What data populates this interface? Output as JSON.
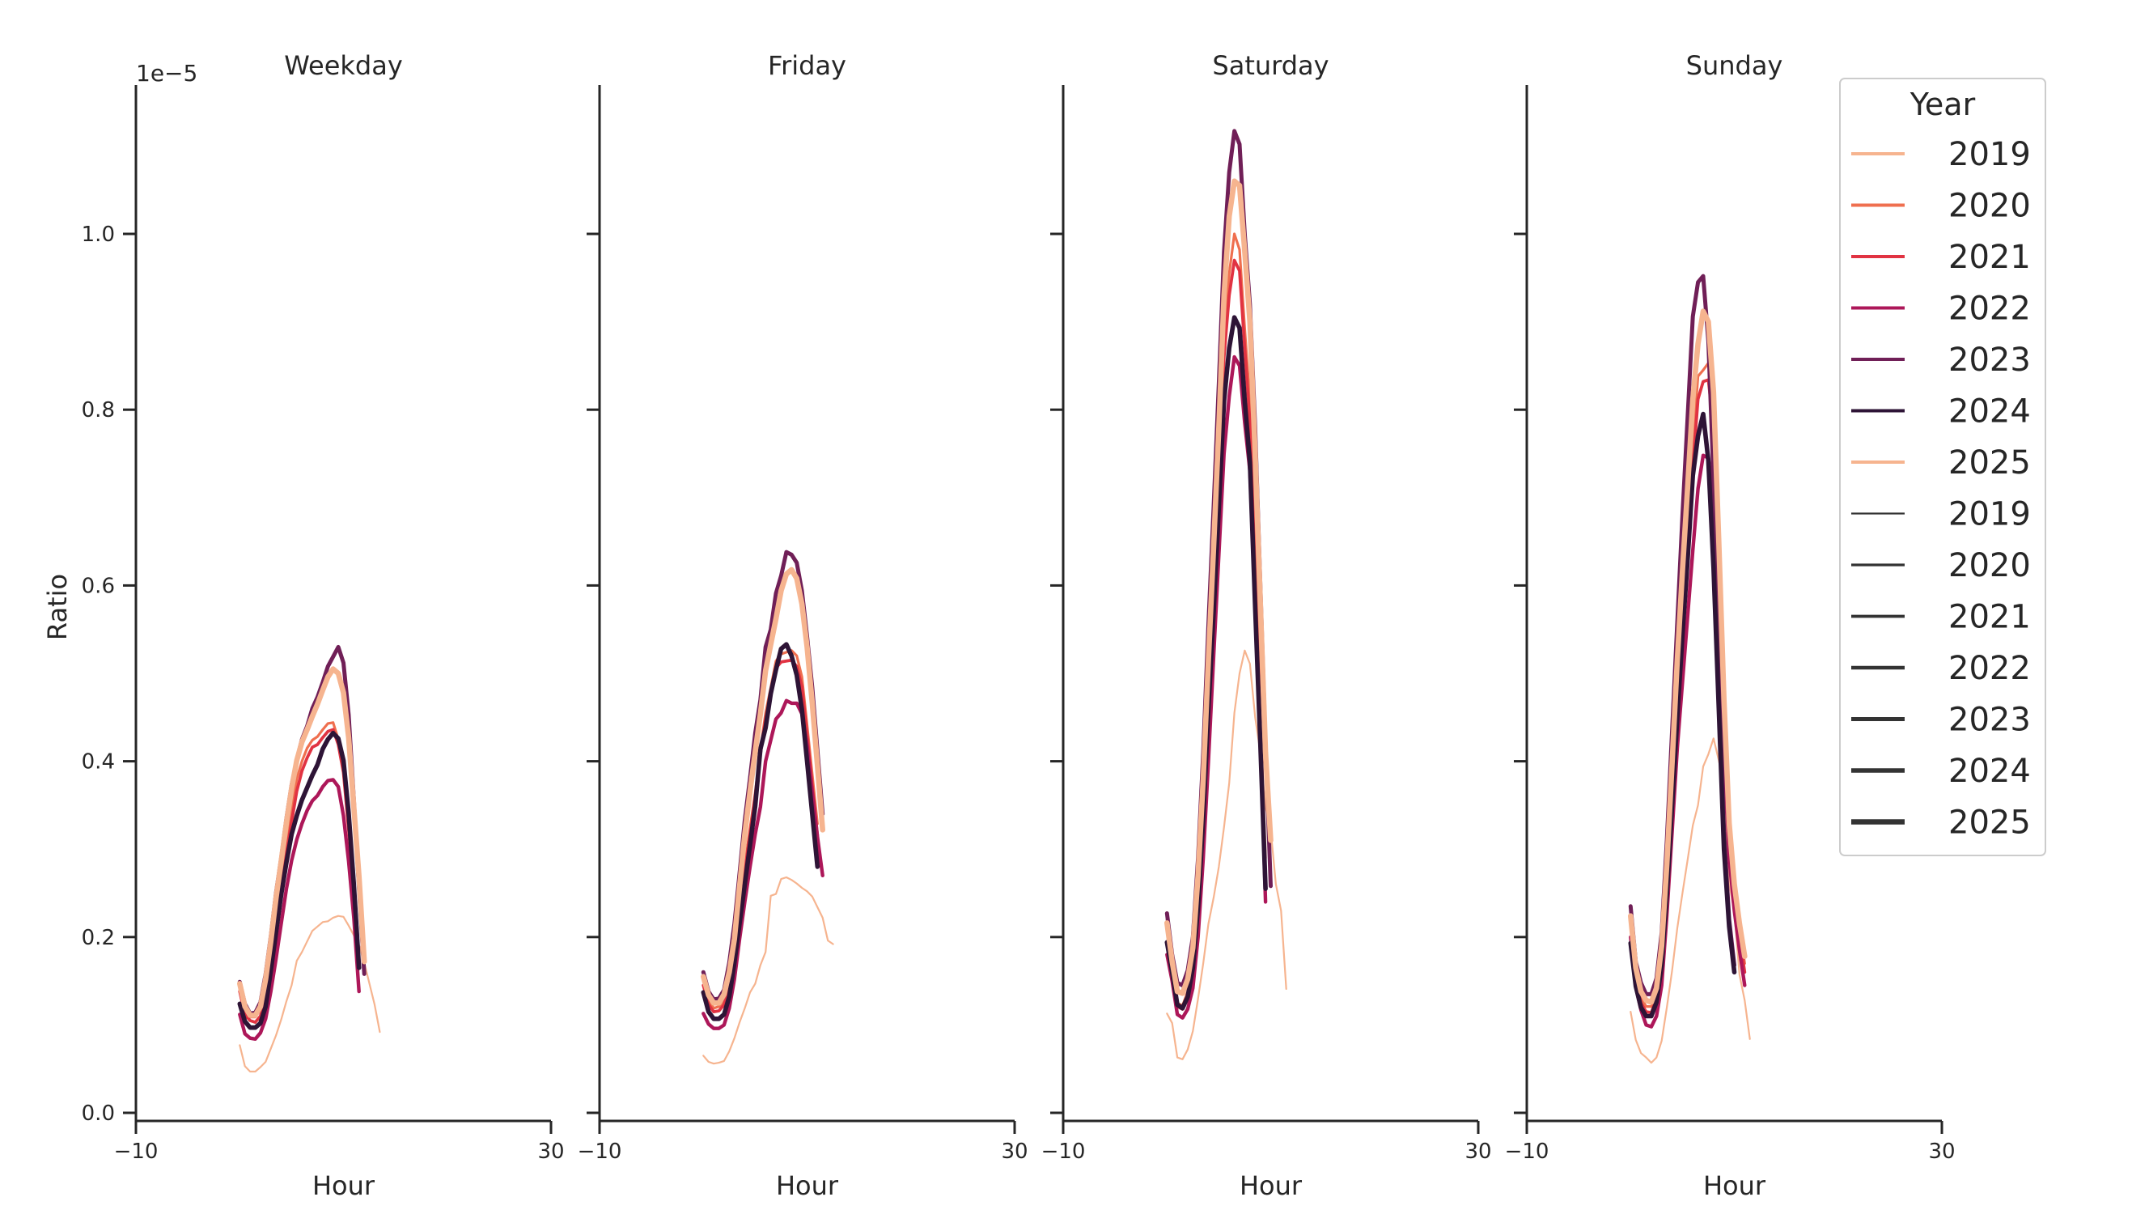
{
  "chart_data": {
    "type": "line",
    "subplots": [
      "Weekday",
      "Friday",
      "Saturday",
      "Sunday"
    ],
    "xlabel": "Hour",
    "ylabel": "Ratio",
    "y_scale_label": "1e−5",
    "y_scale": 1e-05,
    "xlim": [
      -10,
      30
    ],
    "ylim": [
      0,
      1.17
    ],
    "xticks": [
      -10,
      30
    ],
    "yticks": [
      0.0,
      0.2,
      0.4,
      0.6,
      0.8,
      1.0
    ],
    "ytick_labels": [
      "0.0",
      "0.2",
      "0.4",
      "0.6",
      "0.8",
      "1.0"
    ],
    "legend": {
      "title": "Year",
      "position": "upper-right",
      "hue_entries": [
        "2019",
        "2020",
        "2021",
        "2022",
        "2023",
        "2024",
        "2025"
      ],
      "size_entries": [
        "2019",
        "2020",
        "2021",
        "2022",
        "2023",
        "2024",
        "2025"
      ]
    },
    "x": [
      0,
      0.5,
      1,
      1.5,
      2,
      2.5,
      3,
      3.5,
      4,
      4.5,
      5,
      5.5,
      6,
      6.5,
      7,
      7.5,
      8,
      8.5,
      9,
      9.5,
      10,
      10.5,
      11,
      11.5,
      12,
      12.5,
      13,
      13.5,
      14,
      14.5,
      15,
      15.5,
      16,
      16.5,
      17,
      17.5,
      18,
      18.5,
      19,
      19.5,
      20,
      20.5,
      21,
      21.5,
      22,
      22.5,
      23,
      23.5
    ],
    "series": [
      {
        "name": "2019",
        "color": "#f6b48f",
        "values": {
          "Weekday": [
            0.077,
            0.053,
            0.047,
            0.047,
            0.052,
            0.058,
            0.073,
            0.088,
            0.106,
            0.127,
            0.145,
            0.173,
            0.183,
            0.195,
            0.207,
            0.212,
            0.217,
            0.218,
            0.222,
            0.224,
            0.223,
            0.213,
            0.202,
            0.191,
            0.171,
            0.147,
            0.123,
            0.092
          ],
          "Friday": [
            0.065,
            0.058,
            0.056,
            0.057,
            0.059,
            0.07,
            0.085,
            0.103,
            0.119,
            0.137,
            0.147,
            0.168,
            0.183,
            0.247,
            0.249,
            0.266,
            0.268,
            0.265,
            0.261,
            0.256,
            0.252,
            0.246,
            0.234,
            0.222,
            0.196,
            0.192
          ],
          "Saturday": [
            0.113,
            0.102,
            0.063,
            0.061,
            0.072,
            0.093,
            0.13,
            0.17,
            0.215,
            0.245,
            0.28,
            0.325,
            0.375,
            0.455,
            0.5,
            0.526,
            0.511,
            0.45,
            0.41,
            0.348,
            0.322,
            0.26,
            0.23,
            0.141
          ],
          "Sunday": [
            0.115,
            0.083,
            0.068,
            0.063,
            0.057,
            0.063,
            0.082,
            0.12,
            0.162,
            0.21,
            0.25,
            0.288,
            0.327,
            0.35,
            0.394,
            0.408,
            0.426,
            0.401,
            0.373,
            0.262,
            0.228,
            0.157,
            0.128,
            0.084
          ]
        }
      },
      {
        "name": "2020",
        "color": "#ef6f4f",
        "values": {
          "Weekday": [
            0.14,
            0.118,
            0.109,
            0.109,
            0.12,
            0.149,
            0.188,
            0.232,
            0.269,
            0.308,
            0.345,
            0.38,
            0.4,
            0.415,
            0.424,
            0.428,
            0.436,
            0.443,
            0.444,
            0.425,
            0.389,
            0.324,
            0.255,
            0.178
          ],
          "Friday": [
            0.15,
            0.129,
            0.119,
            0.121,
            0.127,
            0.147,
            0.182,
            0.231,
            0.281,
            0.324,
            0.365,
            0.413,
            0.455,
            0.484,
            0.514,
            0.522,
            0.524,
            0.526,
            0.52,
            0.496,
            0.441,
            0.385,
            0.329
          ],
          "Saturday": [
            0.22,
            0.175,
            0.125,
            0.122,
            0.138,
            0.178,
            0.265,
            0.375,
            0.51,
            0.625,
            0.76,
            0.885,
            0.955,
            1.0,
            0.982,
            0.892,
            0.81,
            0.63,
            0.455,
            0.29
          ],
          "Sunday": [
            0.225,
            0.163,
            0.131,
            0.121,
            0.121,
            0.136,
            0.182,
            0.273,
            0.384,
            0.495,
            0.59,
            0.677,
            0.76,
            0.838,
            0.845,
            0.853,
            0.8,
            0.64,
            0.465,
            0.33,
            0.26,
            0.215,
            0.17
          ]
        }
      },
      {
        "name": "2021",
        "color": "#e13342",
        "values": {
          "Weekday": [
            0.138,
            0.112,
            0.105,
            0.103,
            0.11,
            0.136,
            0.17,
            0.212,
            0.254,
            0.296,
            0.331,
            0.366,
            0.389,
            0.404,
            0.416,
            0.419,
            0.427,
            0.434,
            0.436,
            0.419,
            0.387,
            0.322,
            0.252,
            0.168
          ],
          "Friday": [
            0.145,
            0.123,
            0.115,
            0.116,
            0.123,
            0.145,
            0.179,
            0.227,
            0.275,
            0.318,
            0.36,
            0.408,
            0.448,
            0.476,
            0.506,
            0.513,
            0.514,
            0.515,
            0.508,
            0.485,
            0.43,
            0.372,
            0.316
          ],
          "Saturday": [
            0.21,
            0.168,
            0.121,
            0.118,
            0.132,
            0.17,
            0.25,
            0.355,
            0.485,
            0.6,
            0.735,
            0.86,
            0.93,
            0.97,
            0.958,
            0.87,
            0.785,
            0.61,
            0.44,
            0.27
          ],
          "Sunday": [
            0.215,
            0.155,
            0.125,
            0.115,
            0.114,
            0.13,
            0.174,
            0.26,
            0.367,
            0.475,
            0.566,
            0.652,
            0.735,
            0.812,
            0.832,
            0.834,
            0.78,
            0.625,
            0.45,
            0.316,
            0.248,
            0.2,
            0.16
          ]
        }
      },
      {
        "name": "2022",
        "color": "#ad1759",
        "values": {
          "Weekday": [
            0.112,
            0.09,
            0.085,
            0.084,
            0.091,
            0.107,
            0.138,
            0.175,
            0.215,
            0.255,
            0.287,
            0.311,
            0.329,
            0.344,
            0.355,
            0.361,
            0.371,
            0.378,
            0.379,
            0.371,
            0.338,
            0.286,
            0.222,
            0.138
          ],
          "Friday": [
            0.113,
            0.101,
            0.096,
            0.096,
            0.1,
            0.119,
            0.152,
            0.198,
            0.24,
            0.28,
            0.317,
            0.348,
            0.4,
            0.424,
            0.448,
            0.455,
            0.469,
            0.466,
            0.466,
            0.454,
            0.418,
            0.364,
            0.314,
            0.27
          ],
          "Saturday": [
            0.18,
            0.15,
            0.112,
            0.108,
            0.118,
            0.142,
            0.2,
            0.29,
            0.4,
            0.52,
            0.635,
            0.75,
            0.815,
            0.86,
            0.85,
            0.785,
            0.73,
            0.58,
            0.43,
            0.24
          ],
          "Sunday": [
            0.2,
            0.143,
            0.117,
            0.1,
            0.098,
            0.11,
            0.145,
            0.225,
            0.32,
            0.415,
            0.49,
            0.565,
            0.64,
            0.71,
            0.748,
            0.745,
            0.7,
            0.61,
            0.43,
            0.29,
            0.23,
            0.185,
            0.145
          ]
        }
      },
      {
        "name": "2023",
        "color": "#701f57",
        "values": {
          "Weekday": [
            0.149,
            0.124,
            0.113,
            0.114,
            0.126,
            0.158,
            0.201,
            0.25,
            0.29,
            0.335,
            0.373,
            0.402,
            0.425,
            0.44,
            0.46,
            0.473,
            0.49,
            0.508,
            0.519,
            0.53,
            0.512,
            0.453,
            0.357,
            0.255,
            0.158
          ],
          "Friday": [
            0.16,
            0.138,
            0.129,
            0.13,
            0.14,
            0.171,
            0.215,
            0.273,
            0.333,
            0.381,
            0.432,
            0.47,
            0.53,
            0.55,
            0.591,
            0.611,
            0.638,
            0.635,
            0.626,
            0.594,
            0.542,
            0.484,
            0.412,
            0.34
          ],
          "Saturday": [
            0.227,
            0.18,
            0.148,
            0.145,
            0.162,
            0.2,
            0.29,
            0.41,
            0.555,
            0.69,
            0.83,
            0.98,
            1.07,
            1.117,
            1.102,
            1.0,
            0.92,
            0.78,
            0.6,
            0.42,
            0.258
          ],
          "Sunday": [
            0.235,
            0.172,
            0.148,
            0.135,
            0.135,
            0.153,
            0.205,
            0.31,
            0.435,
            0.558,
            0.68,
            0.792,
            0.906,
            0.945,
            0.952,
            0.878,
            0.72,
            0.52,
            0.32,
            0.22,
            0.168
          ]
        }
      },
      {
        "name": "2024",
        "color": "#2e1436",
        "values": {
          "Weekday": [
            0.124,
            0.104,
            0.097,
            0.097,
            0.102,
            0.121,
            0.162,
            0.205,
            0.248,
            0.285,
            0.317,
            0.338,
            0.356,
            0.37,
            0.384,
            0.396,
            0.414,
            0.425,
            0.432,
            0.426,
            0.401,
            0.341,
            0.26,
            0.165
          ],
          "Friday": [
            0.137,
            0.115,
            0.107,
            0.107,
            0.112,
            0.132,
            0.171,
            0.216,
            0.26,
            0.305,
            0.349,
            0.414,
            0.438,
            0.477,
            0.504,
            0.528,
            0.533,
            0.52,
            0.498,
            0.459,
            0.4,
            0.34,
            0.28
          ],
          "Saturday": [
            0.194,
            0.16,
            0.123,
            0.119,
            0.132,
            0.165,
            0.235,
            0.335,
            0.46,
            0.57,
            0.69,
            0.81,
            0.87,
            0.905,
            0.893,
            0.81,
            0.74,
            0.575,
            0.42,
            0.255
          ],
          "Sunday": [
            0.193,
            0.144,
            0.12,
            0.11,
            0.11,
            0.126,
            0.168,
            0.25,
            0.35,
            0.45,
            0.544,
            0.63,
            0.725,
            0.77,
            0.795,
            0.742,
            0.62,
            0.46,
            0.3,
            0.212,
            0.16
          ]
        }
      },
      {
        "name": "2025",
        "color": "#f6b48f",
        "values": {
          "Weekday": [
            0.147,
            0.121,
            0.111,
            0.111,
            0.121,
            0.152,
            0.195,
            0.244,
            0.286,
            0.33,
            0.369,
            0.401,
            0.422,
            0.436,
            0.451,
            0.465,
            0.481,
            0.496,
            0.505,
            0.5,
            0.478,
            0.427,
            0.348,
            0.269,
            0.172
          ],
          "Friday": [
            0.155,
            0.134,
            0.125,
            0.125,
            0.135,
            0.16,
            0.198,
            0.258,
            0.317,
            0.366,
            0.411,
            0.454,
            0.503,
            0.533,
            0.562,
            0.594,
            0.613,
            0.618,
            0.608,
            0.579,
            0.53,
            0.466,
            0.395,
            0.322
          ],
          "Saturday": [
            0.216,
            0.172,
            0.138,
            0.136,
            0.152,
            0.188,
            0.27,
            0.38,
            0.515,
            0.645,
            0.78,
            0.93,
            1.02,
            1.06,
            1.055,
            0.98,
            0.9,
            0.75,
            0.58,
            0.41,
            0.31
          ],
          "Sunday": [
            0.224,
            0.165,
            0.138,
            0.128,
            0.126,
            0.142,
            0.19,
            0.283,
            0.398,
            0.515,
            0.617,
            0.712,
            0.812,
            0.875,
            0.912,
            0.9,
            0.82,
            0.65,
            0.47,
            0.33,
            0.26,
            0.215,
            0.178
          ]
        }
      }
    ]
  }
}
